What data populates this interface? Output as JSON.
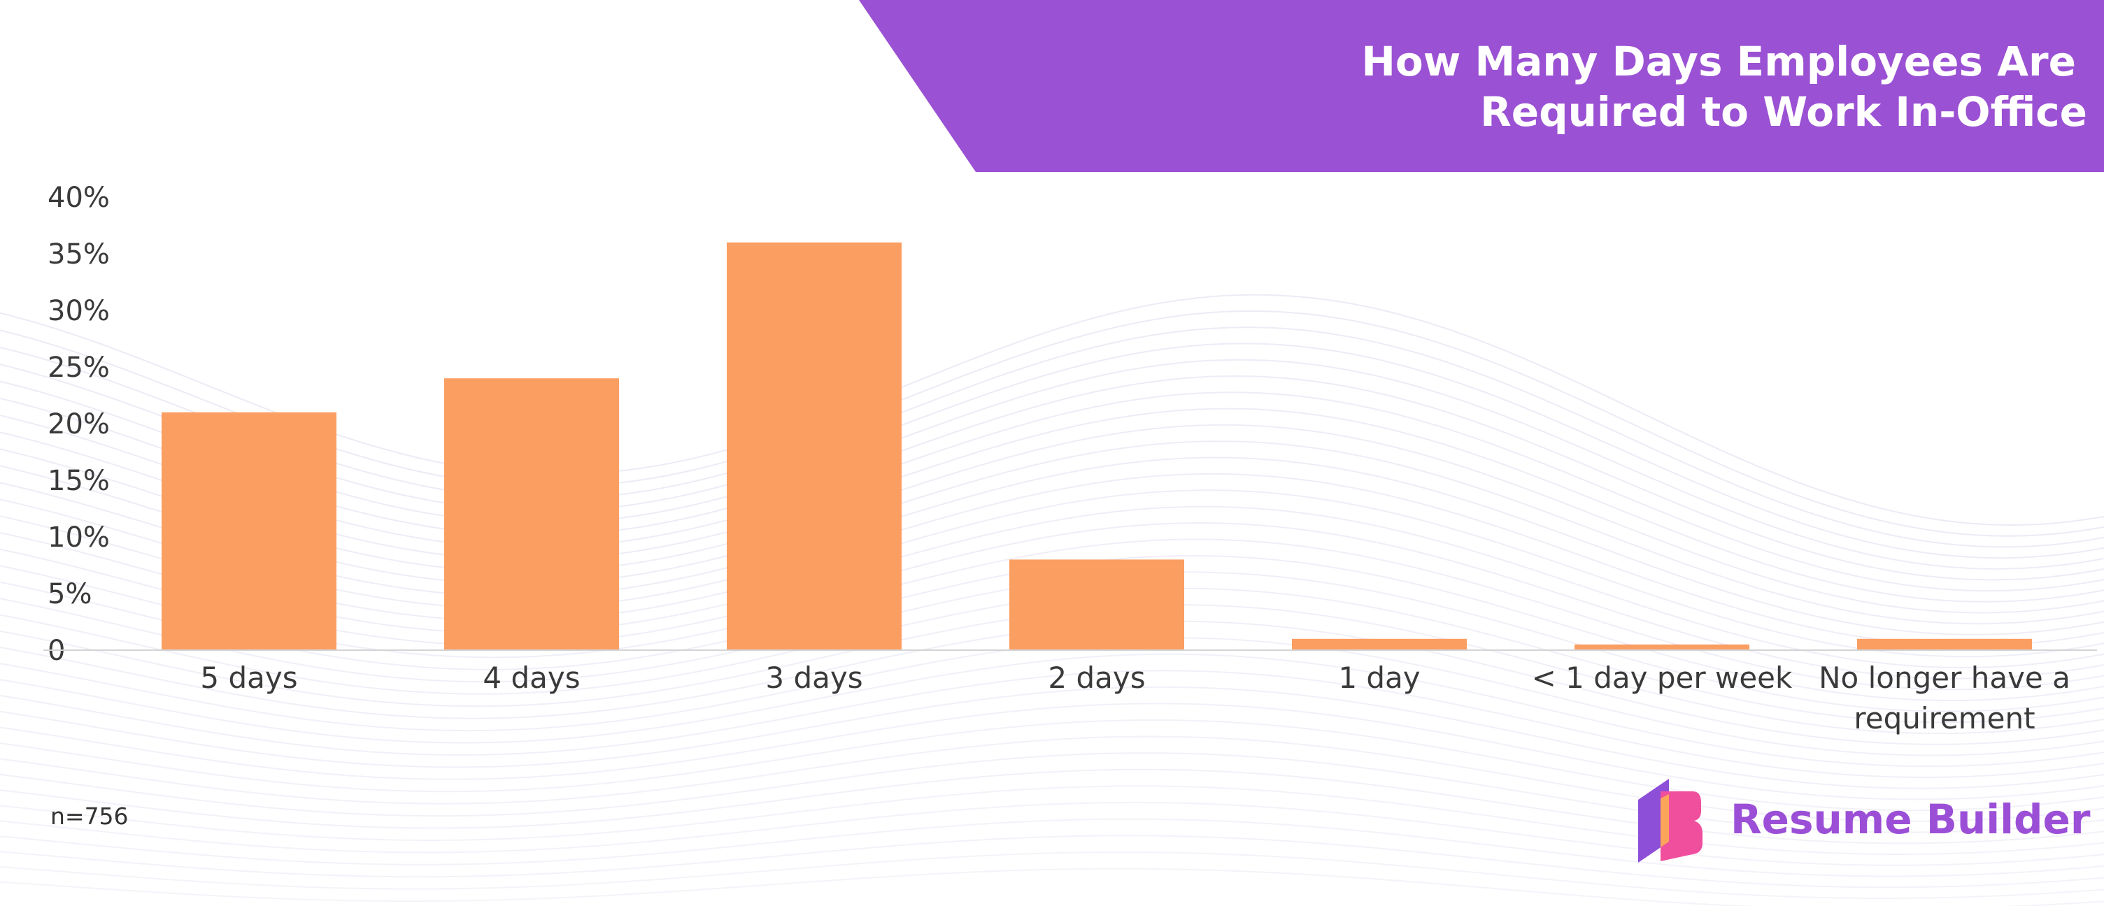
{
  "title": {
    "line1": "How Many Days Employees Are",
    "line2": "Required to Work In-Office"
  },
  "colors": {
    "banner": "#9b51d3",
    "bar": "#fb9e61",
    "brand": "#9b4fd6",
    "logo_purple": "#8e4fd8",
    "logo_pink": "#f04f9e",
    "logo_orange": "#fba45a",
    "waves": "#e6e4f2"
  },
  "chart_data": {
    "type": "bar",
    "title": "How Many Days Employees Are Required to Work In-Office",
    "xlabel": "",
    "ylabel": "",
    "ylim": [
      0,
      40
    ],
    "yticks": [
      0,
      5,
      10,
      15,
      20,
      25,
      30,
      35,
      40
    ],
    "ytick_labels": [
      "0",
      "5%",
      "10%",
      "15%",
      "20%",
      "25%",
      "30%",
      "35%",
      "40%"
    ],
    "categories": [
      [
        "5 days"
      ],
      [
        "4 days"
      ],
      [
        "3 days"
      ],
      [
        "2 days"
      ],
      [
        "1 day"
      ],
      [
        "< 1 day per week"
      ],
      [
        "No longer have a",
        "requirement"
      ]
    ],
    "values": [
      21,
      24,
      36,
      8,
      1,
      0.5,
      1
    ],
    "grid": false,
    "legend": "none"
  },
  "footer": {
    "sample": "n=756",
    "brand_name": "Resume Builder",
    "brand_icon": "resume-builder-logo-icon"
  }
}
